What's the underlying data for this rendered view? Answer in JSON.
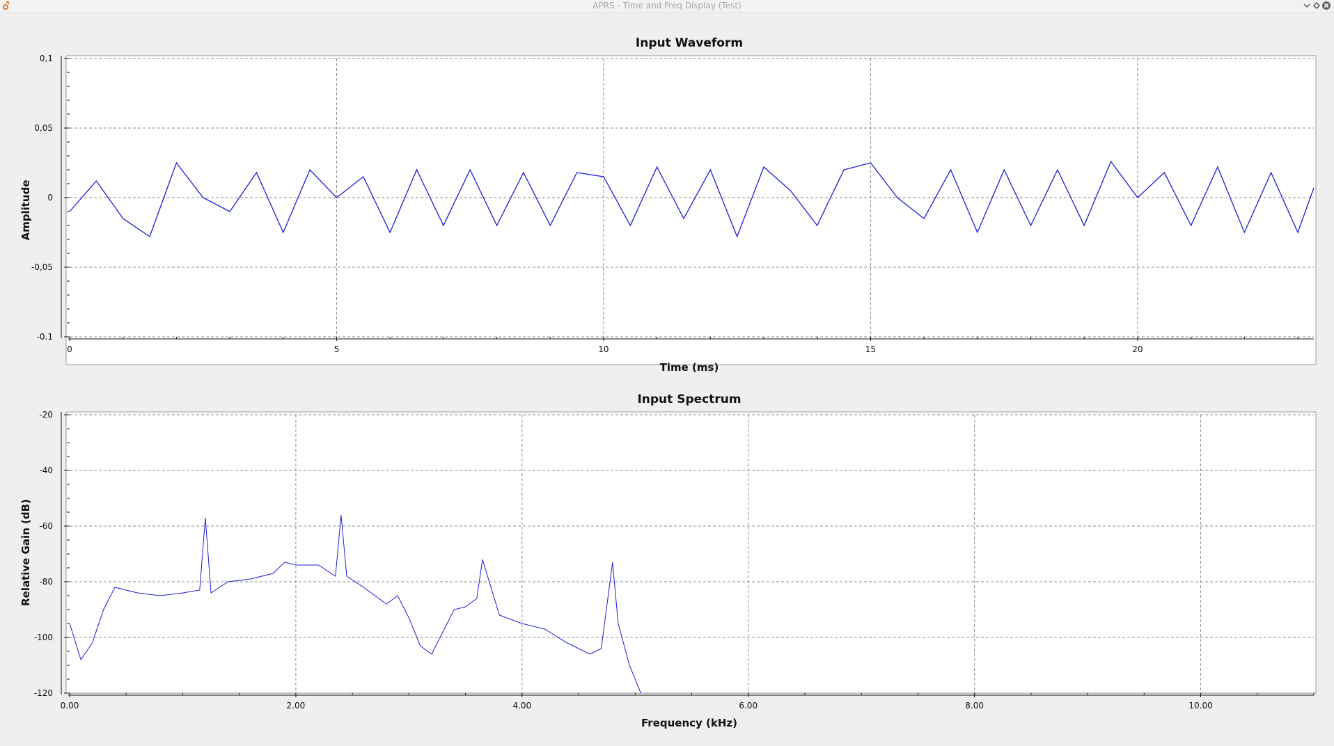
{
  "window": {
    "title": "APRS - Time and Freq Display (Test)",
    "app_icon": "gnuradio-icon",
    "controls": [
      "minimize-icon",
      "maximize-icon",
      "close-icon"
    ]
  },
  "colors": {
    "trace": "#1b1bd8",
    "plot_bg": "#ffffff",
    "window_bg": "#efefef"
  },
  "waveform": {
    "title": "Input Waveform",
    "xlabel": "Time (ms)",
    "ylabel": "Amplitude",
    "x_ticks": [
      "0",
      "5",
      "10",
      "15",
      "20"
    ],
    "y_ticks": [
      "0,1",
      "0,05",
      "0",
      "-0,05",
      "-0.1"
    ]
  },
  "spectrum": {
    "title": "Input Spectrum",
    "xlabel": "Frequency (kHz)",
    "ylabel": "Relative Gain (dB)",
    "x_ticks": [
      "0.00",
      "2.00",
      "4.00",
      "6.00",
      "8.00",
      "10.00"
    ],
    "y_ticks": [
      "-20",
      "-40",
      "-60",
      "-80",
      "-100",
      "-120"
    ]
  },
  "chart_data": [
    {
      "type": "line",
      "title": "Input Waveform",
      "xlabel": "Time (ms)",
      "ylabel": "Amplitude",
      "xlim": [
        0,
        23.3
      ],
      "ylim": [
        -0.1,
        0.1
      ],
      "grid": true,
      "series": [
        {
          "x": [
            0,
            0.5,
            1.0,
            1.5,
            2.0,
            2.5,
            3.0,
            3.5,
            4.0,
            4.5,
            5.0,
            5.5,
            6.0,
            6.5,
            7.0,
            7.5,
            8.0,
            8.5,
            9.0,
            9.5,
            10.0,
            10.5,
            11.0,
            11.5,
            12.0,
            12.5,
            13.0,
            13.5,
            14.0,
            14.5,
            15.0,
            15.5,
            16.0,
            16.5,
            17.0,
            17.5,
            18.0,
            18.5,
            19.0,
            19.5,
            20.0,
            20.5,
            21.0,
            21.5,
            22.0,
            22.5,
            23.0,
            23.3
          ],
          "y": [
            -0.01,
            0.012,
            -0.015,
            -0.028,
            0.025,
            0.0,
            -0.01,
            0.018,
            -0.025,
            0.02,
            0.0,
            0.015,
            -0.025,
            0.02,
            -0.02,
            0.02,
            -0.02,
            0.018,
            -0.02,
            0.018,
            0.015,
            -0.02,
            0.022,
            -0.015,
            0.02,
            -0.028,
            0.022,
            0.005,
            -0.02,
            0.02,
            0.025,
            0.0,
            -0.015,
            0.02,
            -0.025,
            0.02,
            -0.02,
            0.02,
            -0.02,
            0.026,
            0.0,
            0.018,
            -0.02,
            0.022,
            -0.025,
            0.018,
            -0.025,
            0.007
          ]
        }
      ]
    },
    {
      "type": "line",
      "title": "Input Spectrum",
      "xlabel": "Frequency (kHz)",
      "ylabel": "Relative Gain (dB)",
      "xlim": [
        0,
        11.0
      ],
      "ylim": [
        -120,
        -20
      ],
      "grid": true,
      "series": [
        {
          "x": [
            0.0,
            0.1,
            0.2,
            0.3,
            0.4,
            0.6,
            0.8,
            1.0,
            1.15,
            1.2,
            1.25,
            1.4,
            1.6,
            1.8,
            1.9,
            2.0,
            2.2,
            2.35,
            2.4,
            2.45,
            2.6,
            2.8,
            2.9,
            3.0,
            3.1,
            3.2,
            3.3,
            3.4,
            3.5,
            3.6,
            3.65,
            3.8,
            4.0,
            4.2,
            4.4,
            4.6,
            4.7,
            4.8,
            4.85,
            4.95,
            5.05
          ],
          "y": [
            -95,
            -108,
            -102,
            -90,
            -82,
            -84,
            -85,
            -84,
            -83,
            -57,
            -84,
            -80,
            -79,
            -77,
            -73,
            -74,
            -74,
            -78,
            -56,
            -78,
            -82,
            -88,
            -85,
            -93,
            -103,
            -106,
            -98,
            -90,
            -89,
            -86,
            -72,
            -92,
            -95,
            -97,
            -102,
            -106,
            -104,
            -73,
            -95,
            -110,
            -120
          ]
        }
      ]
    }
  ]
}
